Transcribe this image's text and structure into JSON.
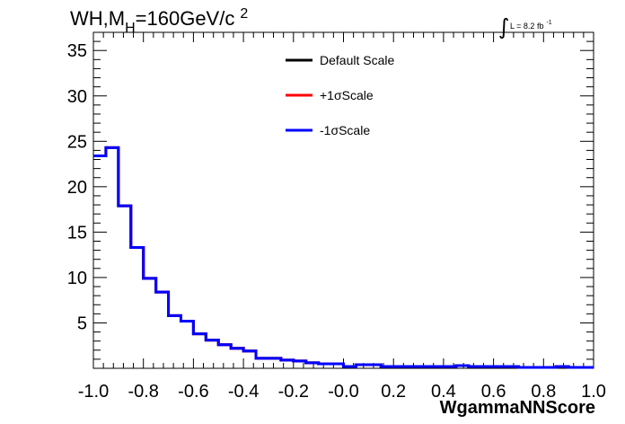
{
  "chart_data": {
    "type": "line",
    "title": "WH,M",
    "title_sub": "H",
    "title_rest": "=160GeV/c",
    "title_sup": "2",
    "lumi_label": "L = 8.2 fb",
    "lumi_sup": "-1",
    "xlabel": "WgammaNNScore",
    "ylabel": "",
    "xlim": [
      -1.0,
      1.0
    ],
    "ylim": [
      0,
      37
    ],
    "x_ticks": [
      -1.0,
      -0.8,
      -0.6,
      -0.4,
      -0.2,
      0.0,
      0.2,
      0.4,
      0.6,
      0.8,
      1.0
    ],
    "x_tick_labels": [
      "-1.0",
      "-0.8",
      "-0.6",
      "-0.4",
      "-0.2",
      "-0.0",
      "0.2",
      "0.4",
      "0.6",
      "0.8",
      "1.0"
    ],
    "y_ticks": [
      5,
      10,
      15,
      20,
      25,
      30,
      35
    ],
    "y_tick_labels": [
      "5",
      "10",
      "15",
      "20",
      "25",
      "30",
      "35"
    ],
    "legend_position": "top-center",
    "series": [
      {
        "name": "Default Scale",
        "color": "#000000"
      },
      {
        "name": "+1σScale",
        "color": "#ff0000"
      },
      {
        "name": "-1σScale",
        "color": "#0000ff"
      }
    ],
    "bin_edges": [
      -1.0,
      -0.95,
      -0.9,
      -0.85,
      -0.8,
      -0.75,
      -0.7,
      -0.65,
      -0.6,
      -0.55,
      -0.5,
      -0.45,
      -0.4,
      -0.35,
      -0.3,
      -0.25,
      -0.2,
      -0.15,
      -0.1,
      -0.05,
      0.0,
      0.05,
      0.1,
      0.15,
      0.2,
      0.25,
      0.3,
      0.35,
      0.4,
      0.45,
      0.5,
      0.55,
      0.6,
      0.65,
      0.7,
      0.75,
      0.8,
      0.85,
      0.9,
      0.95,
      1.0
    ],
    "values": [
      23.4,
      24.3,
      17.9,
      13.3,
      9.9,
      8.4,
      5.8,
      5.2,
      3.8,
      3.1,
      2.6,
      2.2,
      1.9,
      1.1,
      1.1,
      0.9,
      0.8,
      0.6,
      0.5,
      0.5,
      0.2,
      0.4,
      0.4,
      0.2,
      0.2,
      0.2,
      0.2,
      0.2,
      0.2,
      0.3,
      0.2,
      0.2,
      0.2,
      0.2,
      0.1,
      0.1,
      0.1,
      0.2,
      0.1,
      0.1
    ],
    "grid": false
  }
}
